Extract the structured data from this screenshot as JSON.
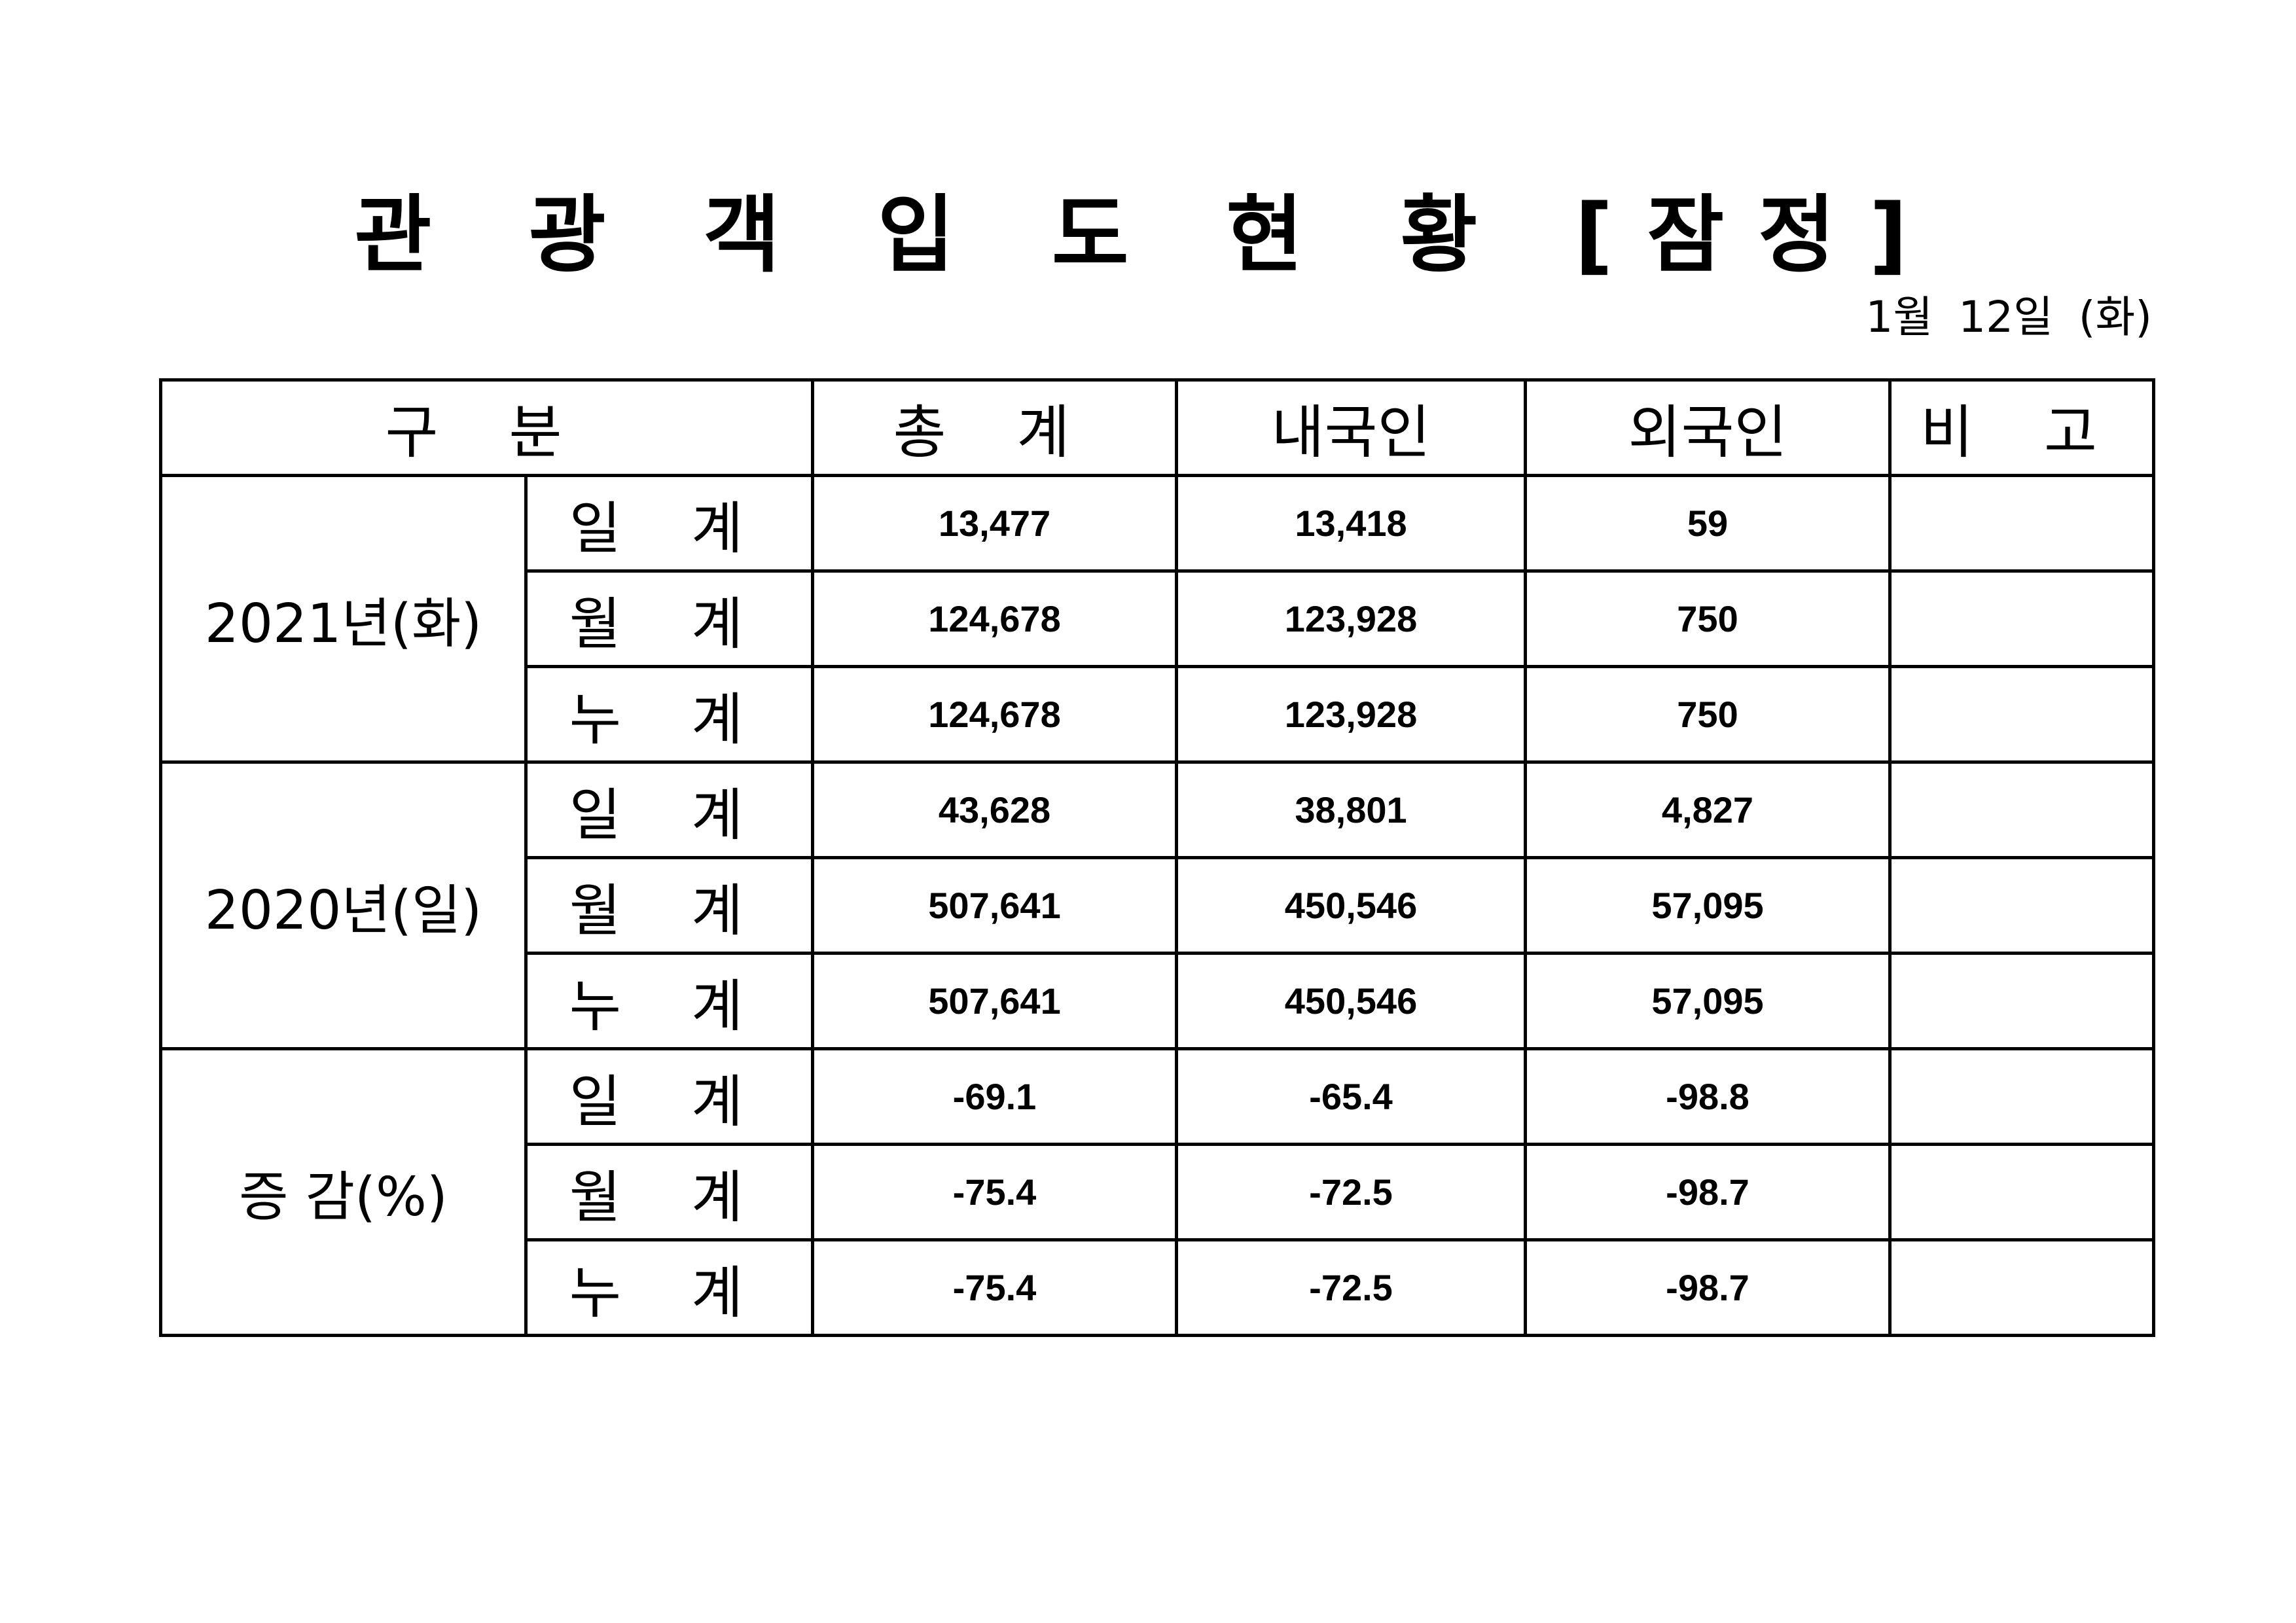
{
  "title": "관 광 객 입 도 현 황 [잠정]",
  "date": "1월 12일 (화)",
  "headers": [
    "구 분",
    "총 계",
    "내국인",
    "외국인",
    "비 고"
  ],
  "groups": [
    {
      "label": "2021년(화)",
      "rows": [
        {
          "type": "일 계",
          "total": "13,477",
          "domestic": "13,418",
          "foreign": "59",
          "note": ""
        },
        {
          "type": "월 계",
          "total": "124,678",
          "domestic": "123,928",
          "foreign": "750",
          "note": ""
        },
        {
          "type": "누 계",
          "total": "124,678",
          "domestic": "123,928",
          "foreign": "750",
          "note": ""
        }
      ]
    },
    {
      "label": "2020년(일)",
      "rows": [
        {
          "type": "일 계",
          "total": "43,628",
          "domestic": "38,801",
          "foreign": "4,827",
          "note": ""
        },
        {
          "type": "월 계",
          "total": "507,641",
          "domestic": "450,546",
          "foreign": "57,095",
          "note": ""
        },
        {
          "type": "누 계",
          "total": "507,641",
          "domestic": "450,546",
          "foreign": "57,095",
          "note": ""
        }
      ]
    },
    {
      "label": "증 감(%)",
      "rows": [
        {
          "type": "일 계",
          "total": "-69.1",
          "domestic": "-65.4",
          "foreign": "-98.8",
          "note": ""
        },
        {
          "type": "월 계",
          "total": "-75.4",
          "domestic": "-72.5",
          "foreign": "-98.7",
          "note": ""
        },
        {
          "type": "누 계",
          "total": "-75.4",
          "domestic": "-72.5",
          "foreign": "-98.7",
          "note": ""
        }
      ]
    }
  ]
}
